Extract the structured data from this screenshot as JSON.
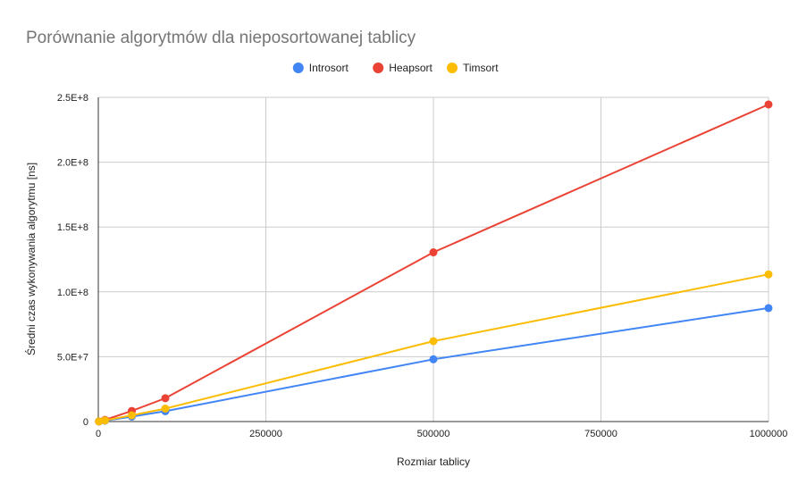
{
  "chart_data": {
    "type": "line",
    "title": "Porównanie algorytmów dla nieposortowanej tablicy",
    "xlabel": "Rozmiar tablicy",
    "ylabel": "Średni czas wykonywania algorytmu [ns]",
    "x": [
      1000,
      10000,
      50000,
      100000,
      500000,
      1000000
    ],
    "xlim": [
      0,
      1000000
    ],
    "ylim": [
      0,
      250000000
    ],
    "x_ticks": [
      0,
      250000,
      500000,
      750000,
      1000000
    ],
    "x_tick_labels": [
      "0",
      "250000",
      "500000",
      "750000",
      "1000000"
    ],
    "y_ticks": [
      0,
      50000000,
      100000000,
      150000000,
      200000000,
      250000000
    ],
    "y_tick_labels": [
      "0",
      "5.0E+7",
      "1.0E+8",
      "1.5E+8",
      "2.0E+8",
      "2.5E+8"
    ],
    "grid": true,
    "legend_position": "top",
    "series": [
      {
        "name": "Introsort",
        "color": "#4285f4",
        "values": [
          70000,
          700000,
          3800000,
          8000000,
          48000000,
          87500000
        ]
      },
      {
        "name": "Heapsort",
        "color": "#ea4335",
        "values": [
          100000,
          1300000,
          8200000,
          18000000,
          130500000,
          244500000
        ]
      },
      {
        "name": "Timsort",
        "color": "#fbbc04",
        "values": [
          80000,
          900000,
          4800000,
          10000000,
          62000000,
          113500000
        ]
      }
    ]
  }
}
